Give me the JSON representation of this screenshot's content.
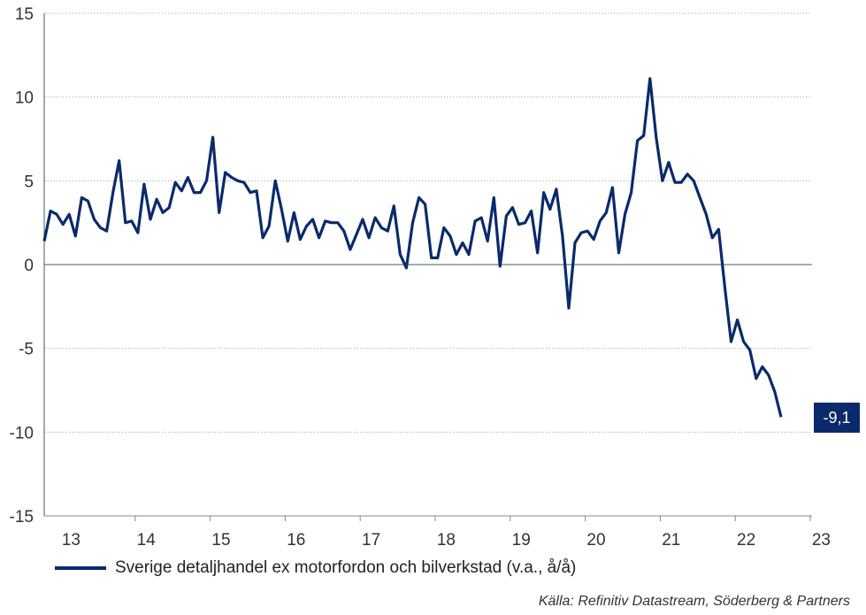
{
  "chart_data": {
    "type": "line",
    "title": "",
    "xlabel": "",
    "ylabel": "",
    "ylim": [
      -15,
      15
    ],
    "yticks": [
      15,
      10,
      5,
      0,
      -5,
      -10,
      -15
    ],
    "ytick_labels": [
      "15",
      "10",
      "5",
      "0",
      "-5",
      "-10",
      "-15"
    ],
    "xticks": [
      "13",
      "14",
      "15",
      "16",
      "17",
      "18",
      "19",
      "20",
      "21",
      "22",
      "23"
    ],
    "x_start": "2012-09",
    "grid": true,
    "legend_position": "bottom-left",
    "series": [
      {
        "name": "Sverige detaljhandel ex motorfordon och bilverkstad (v.a., å/å)",
        "color": "#0a2a6b",
        "values": [
          1.4,
          3.2,
          3.0,
          2.4,
          3.0,
          1.7,
          4.0,
          3.8,
          2.7,
          2.2,
          2.0,
          4.3,
          6.2,
          2.5,
          2.6,
          1.9,
          4.8,
          2.7,
          3.9,
          3.1,
          3.4,
          4.9,
          4.4,
          5.2,
          4.3,
          4.3,
          5.0,
          7.6,
          3.1,
          5.5,
          5.2,
          5.0,
          4.9,
          4.3,
          4.4,
          1.6,
          2.3,
          5.0,
          3.3,
          1.4,
          3.1,
          1.5,
          2.3,
          2.7,
          1.6,
          2.6,
          2.5,
          2.5,
          2.0,
          0.9,
          1.8,
          2.7,
          1.6,
          2.8,
          2.2,
          2.0,
          3.5,
          0.6,
          -0.2,
          2.5,
          4.0,
          3.6,
          0.4,
          0.4,
          2.2,
          1.7,
          0.6,
          1.3,
          0.6,
          2.6,
          2.8,
          1.4,
          4.0,
          -0.1,
          2.9,
          3.4,
          2.4,
          2.5,
          3.2,
          0.7,
          4.3,
          3.3,
          4.5,
          1.7,
          -2.6,
          1.3,
          1.9,
          2.0,
          1.5,
          2.6,
          3.1,
          4.6,
          0.7,
          3.0,
          4.3,
          7.4,
          7.7,
          11.1,
          7.6,
          5.0,
          6.1,
          4.9,
          4.9,
          5.4,
          5.0,
          4.0,
          3.0,
          1.6,
          2.1,
          -1.4,
          -4.6,
          -3.3,
          -4.6,
          -5.1,
          -6.8,
          -6.1,
          -6.6,
          -7.6,
          -9.1
        ]
      }
    ],
    "end_label": "-9,1",
    "source": "Källa: Refinitiv Datastream, Söderberg & Partners"
  }
}
